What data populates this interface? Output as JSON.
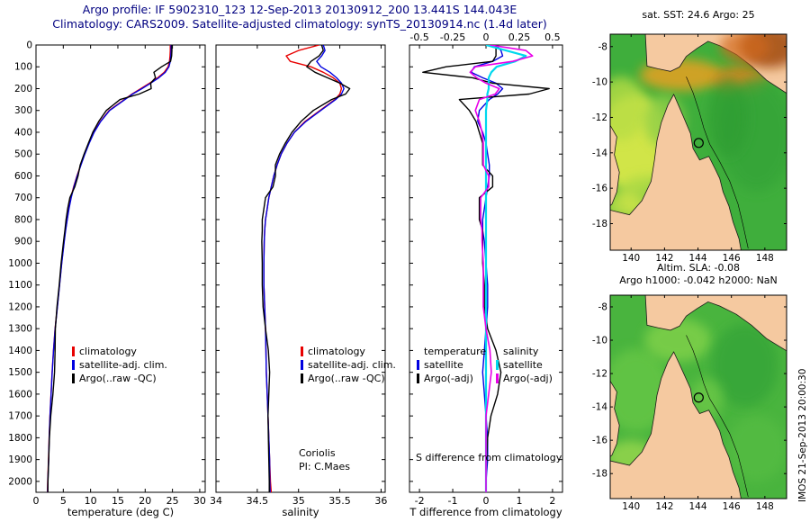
{
  "figure": {
    "title_line1": "Argo profile: IF 5902310_123 12-Sep-2013 20130912_200 13.441S 144.043E",
    "title_line2": "Climatology: CARS2009. Satellite-adjusted climatology: synTS_20130914.nc (1.4d later)",
    "title_color": "#000080",
    "watermark": "IMOS 21-Sep-2013 20:00:30"
  },
  "annotations": {
    "coriolis_line1": "Coriolis",
    "coriolis_line2": "PI: C.Maes",
    "s_diff_label": "S difference from climatology"
  },
  "legends": [
    {
      "id": "temp",
      "items": [
        {
          "label": "climatology",
          "color": "#e80000"
        },
        {
          "label": "satellite-adj. clim.",
          "color": "#0000e0"
        },
        {
          "label": "Argo(..raw -QC)",
          "color": "#000000"
        }
      ]
    },
    {
      "id": "sal",
      "items": [
        {
          "label": "climatology",
          "color": "#e80000"
        },
        {
          "label": "satellite-adj. clim.",
          "color": "#0000e0"
        },
        {
          "label": "Argo(..raw -QC)",
          "color": "#000000"
        }
      ]
    },
    {
      "id": "diff-temp",
      "header": "temperature",
      "items": [
        {
          "label": "satellite",
          "color": "#0000e0"
        },
        {
          "label": "Argo(-adj)",
          "color": "#000000"
        }
      ]
    },
    {
      "id": "diff-sal",
      "header": "salinity",
      "items": [
        {
          "label": "satellite",
          "color": "#00d8ee"
        },
        {
          "label": "Argo(-adj)",
          "color": "#e800e8"
        }
      ]
    }
  ],
  "chart_data": [
    {
      "id": "temperature-profile",
      "type": "line",
      "xlabel": "temperature (deg C)",
      "xlim": [
        0,
        31
      ],
      "ylim": [
        0,
        2050
      ],
      "xticks": [
        0,
        5,
        10,
        15,
        20,
        25,
        30
      ],
      "yticks": [
        0,
        100,
        200,
        300,
        400,
        500,
        600,
        700,
        800,
        900,
        1000,
        1100,
        1200,
        1300,
        1400,
        1500,
        1600,
        1700,
        1800,
        1900,
        2000
      ],
      "ytick_labels": true,
      "y": [
        0,
        25,
        50,
        75,
        100,
        125,
        150,
        175,
        200,
        225,
        250,
        300,
        350,
        400,
        450,
        500,
        550,
        600,
        650,
        700,
        750,
        800,
        850,
        900,
        1000,
        1100,
        1200,
        1300,
        1400,
        1500,
        1600,
        1700,
        1800,
        1900,
        2000,
        2050
      ],
      "series": [
        {
          "name": "climatology",
          "color": "#e80000",
          "lw": 1.4,
          "x": [
            24.6,
            24.6,
            24.55,
            24.45,
            24.2,
            23.5,
            22.3,
            20.8,
            19.2,
            17.6,
            16.2,
            13.4,
            11.8,
            10.6,
            9.7,
            8.9,
            8.2,
            7.5,
            6.9,
            6.4,
            6.0,
            5.7,
            5.4,
            5.15,
            4.7,
            4.3,
            3.9,
            3.5,
            3.2,
            2.95,
            2.75,
            2.55,
            2.4,
            2.3,
            2.15,
            2.1
          ]
        },
        {
          "name": "satellite-adj-clim",
          "color": "#0000e0",
          "lw": 1.4,
          "x": [
            24.75,
            24.75,
            24.7,
            24.6,
            24.35,
            23.7,
            22.5,
            21.0,
            19.4,
            17.7,
            16.3,
            13.5,
            11.85,
            10.65,
            9.75,
            8.95,
            8.25,
            7.55,
            6.95,
            6.45,
            6.05,
            5.72,
            5.42,
            5.17,
            4.72,
            4.32,
            3.92,
            3.52,
            3.22,
            2.97,
            2.77,
            2.57,
            2.42,
            2.32,
            2.17,
            2.13
          ]
        },
        {
          "name": "argo-raw",
          "color": "#000000",
          "lw": 1.4,
          "x": [
            24.9,
            24.9,
            24.85,
            24.65,
            23.0,
            21.6,
            21.9,
            21.0,
            21.1,
            18.9,
            15.4,
            12.9,
            11.5,
            10.4,
            9.6,
            8.8,
            8.1,
            7.7,
            7.1,
            6.2,
            5.8,
            5.5,
            5.3,
            5.05,
            4.6,
            4.25,
            3.85,
            3.55,
            3.5,
            3.4,
            3.1,
            2.7,
            2.45,
            2.32,
            2.2,
            2.18
          ]
        }
      ]
    },
    {
      "id": "salinity-profile",
      "type": "line",
      "xlabel": "salinity",
      "xlim": [
        34,
        36.05
      ],
      "ylim": [
        0,
        2050
      ],
      "xticks": [
        34,
        34.5,
        35,
        35.5,
        36
      ],
      "yticks": [
        0,
        100,
        200,
        300,
        400,
        500,
        600,
        700,
        800,
        900,
        1000,
        1100,
        1200,
        1300,
        1400,
        1500,
        1600,
        1700,
        1800,
        1900,
        2000
      ],
      "ytick_labels": false,
      "y": [
        0,
        25,
        50,
        75,
        100,
        125,
        150,
        175,
        200,
        225,
        250,
        300,
        350,
        400,
        450,
        500,
        550,
        600,
        650,
        700,
        750,
        800,
        850,
        900,
        1000,
        1100,
        1200,
        1300,
        1400,
        1500,
        1600,
        1700,
        1800,
        1900,
        2000,
        2050
      ],
      "series": [
        {
          "name": "climatology",
          "color": "#e80000",
          "lw": 1.4,
          "x": [
            35.25,
            35.0,
            34.85,
            34.9,
            35.15,
            35.3,
            35.42,
            35.5,
            35.52,
            35.5,
            35.44,
            35.26,
            35.08,
            34.95,
            34.86,
            34.79,
            34.74,
            34.7,
            34.67,
            34.64,
            34.62,
            34.6,
            34.59,
            34.585,
            34.58,
            34.58,
            34.59,
            34.6,
            34.605,
            34.61,
            34.62,
            34.63,
            34.64,
            34.65,
            34.66,
            34.67
          ]
        },
        {
          "name": "satellite-adj-clim",
          "color": "#0000e0",
          "lw": 1.4,
          "x": [
            35.3,
            35.32,
            35.28,
            35.22,
            35.27,
            35.38,
            35.46,
            35.52,
            35.55,
            35.52,
            35.45,
            35.27,
            35.09,
            34.95,
            34.86,
            34.79,
            34.74,
            34.7,
            34.67,
            34.64,
            34.62,
            34.6,
            34.59,
            34.585,
            34.58,
            34.58,
            34.59,
            34.6,
            34.605,
            34.61,
            34.62,
            34.63,
            34.64,
            34.65,
            34.652,
            34.655
          ]
        },
        {
          "name": "argo-raw",
          "color": "#000000",
          "lw": 1.4,
          "x": [
            35.28,
            35.3,
            35.25,
            35.15,
            35.1,
            35.2,
            35.35,
            35.5,
            35.62,
            35.57,
            35.4,
            35.18,
            35.03,
            34.92,
            34.84,
            34.77,
            34.72,
            34.72,
            34.69,
            34.6,
            34.58,
            34.56,
            34.56,
            34.555,
            34.56,
            34.56,
            34.57,
            34.6,
            34.635,
            34.65,
            34.64,
            34.63,
            34.635,
            34.64,
            34.645,
            34.645
          ]
        }
      ]
    },
    {
      "id": "difference-profile",
      "type": "line",
      "xlabel": "T difference from climatology",
      "xlabel_top": "S difference from climatology",
      "xlim": [
        -2.3,
        2.3
      ],
      "xticks": [
        -2,
        -1,
        0,
        1,
        2
      ],
      "xlim_top": [
        -0.575,
        0.575
      ],
      "xticks_top": [
        -0.5,
        -0.25,
        0,
        0.25,
        0.5
      ],
      "ylim": [
        0,
        2050
      ],
      "yticks": [
        0,
        100,
        200,
        300,
        400,
        500,
        600,
        700,
        800,
        900,
        1000,
        1100,
        1200,
        1300,
        1400,
        1500,
        1600,
        1700,
        1800,
        1900,
        2000
      ],
      "ytick_labels": false,
      "y": [
        0,
        25,
        50,
        75,
        100,
        125,
        150,
        175,
        200,
        225,
        250,
        300,
        350,
        400,
        450,
        500,
        550,
        600,
        650,
        700,
        750,
        800,
        850,
        900,
        1000,
        1100,
        1200,
        1300,
        1400,
        1500,
        1600,
        1700,
        1800,
        1900,
        2000,
        2050
      ],
      "series": [
        {
          "name": "t-diff-satellite",
          "color": "#0000e0",
          "lw": 1.4,
          "axis": "bottom",
          "x": [
            0.3,
            0.45,
            0.5,
            0.2,
            -0.35,
            -0.45,
            -0.1,
            0.3,
            0.5,
            0.35,
            0.1,
            -0.2,
            -0.25,
            -0.1,
            0.0,
            0.05,
            0.1,
            0.1,
            0.05,
            0.0,
            -0.05,
            -0.1,
            -0.1,
            -0.05,
            0.0,
            0.05,
            0.05,
            0.0,
            -0.05,
            -0.1,
            -0.05,
            0.0,
            0.05,
            0.05,
            0.0,
            0.0
          ]
        },
        {
          "name": "t-diff-argo",
          "color": "#000000",
          "lw": 1.4,
          "axis": "bottom",
          "x": [
            0.3,
            0.3,
            0.3,
            0.2,
            -1.2,
            -1.9,
            -0.4,
            0.2,
            1.9,
            1.3,
            -0.8,
            -0.5,
            -0.3,
            -0.2,
            -0.1,
            -0.1,
            -0.1,
            0.2,
            0.2,
            -0.2,
            -0.2,
            -0.2,
            -0.1,
            -0.1,
            -0.1,
            -0.05,
            -0.05,
            0.05,
            0.3,
            0.45,
            0.35,
            0.15,
            0.05,
            0.02,
            0.0,
            0.0
          ]
        },
        {
          "name": "s-diff-satellite",
          "color": "#00d8ee",
          "lw": 2.2,
          "axis": "top",
          "x": [
            0.0,
            0.15,
            0.3,
            0.22,
            0.08,
            0.04,
            0.02,
            0.02,
            0.02,
            0.01,
            0.01,
            0,
            0,
            0,
            0,
            0,
            0,
            0,
            0,
            0,
            0,
            0,
            0,
            0,
            0,
            0,
            0,
            0,
            0,
            0,
            0,
            0,
            0,
            0,
            0,
            0
          ]
        },
        {
          "name": "s-diff-argo",
          "color": "#e800e8",
          "lw": 1.6,
          "axis": "top",
          "x": [
            0.03,
            0.3,
            0.35,
            0.2,
            -0.08,
            -0.12,
            -0.07,
            0.0,
            0.1,
            0.07,
            -0.05,
            -0.08,
            -0.05,
            -0.03,
            -0.02,
            -0.02,
            -0.02,
            0.02,
            0.02,
            -0.04,
            -0.04,
            -0.04,
            -0.03,
            -0.03,
            -0.02,
            -0.02,
            -0.02,
            0.0,
            0.03,
            0.04,
            0.02,
            0.0,
            0.0,
            0.0,
            0.0,
            0.0
          ]
        }
      ]
    }
  ],
  "maps": [
    {
      "id": "sst-map",
      "title": "sat. SST: 24.6 Argo: 25",
      "xlim": [
        138.75,
        149.3
      ],
      "ylim": [
        -7.3,
        -19.5
      ],
      "xticks": [
        140,
        142,
        144,
        146,
        148
      ],
      "yticks": [
        -8,
        -10,
        -12,
        -14,
        -16,
        -18
      ],
      "ocean": "#3fae3c",
      "land": [
        "australia",
        "png",
        "nt_coast"
      ],
      "marker": {
        "lon": 144.043,
        "lat": -13.441
      },
      "blobs": [
        {
          "lon": 140.2,
          "lat": -13.5,
          "rx": 2.2,
          "ry": 2.8,
          "color": "#d9e84a",
          "op": 0.95
        },
        {
          "lon": 139.4,
          "lat": -11.5,
          "rx": 1.5,
          "ry": 1.8,
          "color": "#b8dd45",
          "op": 0.8
        },
        {
          "lon": 141.0,
          "lat": -16.5,
          "rx": 1.8,
          "ry": 1.2,
          "color": "#a8d845",
          "op": 0.8
        },
        {
          "lon": 139.6,
          "lat": -17.0,
          "rx": 1.2,
          "ry": 0.8,
          "color": "#d9e84a",
          "op": 0.7
        },
        {
          "lon": 143.0,
          "lat": -9.6,
          "rx": 2.5,
          "ry": 0.9,
          "color": "#e8a020",
          "op": 0.85
        },
        {
          "lon": 146.5,
          "lat": -9.9,
          "rx": 1.6,
          "ry": 0.8,
          "color": "#e8801a",
          "op": 0.8
        },
        {
          "lon": 147.5,
          "lat": -13.0,
          "rx": 2.2,
          "ry": 3.2,
          "color": "#35a437",
          "op": 0.8
        },
        {
          "lon": 145.8,
          "lat": -12.0,
          "rx": 1.2,
          "ry": 2.2,
          "color": "#2f9d33",
          "op": 0.7
        },
        {
          "lon": 142.0,
          "lat": -12.2,
          "rx": 1.2,
          "ry": 1.5,
          "color": "#8fcf46",
          "op": 0.8
        }
      ],
      "blobs_over": [
        {
          "lon": 148.3,
          "lat": -8.0,
          "rx": 1.8,
          "ry": 1.2,
          "color": "#a04a10",
          "op": 0.85
        },
        {
          "lon": 146.8,
          "lat": -8.0,
          "rx": 1.5,
          "ry": 0.9,
          "color": "#d2691e",
          "op": 0.7
        }
      ]
    },
    {
      "id": "sla-map",
      "title1": "Altim. SLA: -0.08",
      "title2": "Argo h1000: -0.042 h2000: NaN",
      "xlim": [
        138.75,
        149.3
      ],
      "ylim": [
        -7.3,
        -19.5
      ],
      "xticks": [
        140,
        142,
        144,
        146,
        148
      ],
      "yticks": [
        -8,
        -10,
        -12,
        -14,
        -16,
        -18
      ],
      "ocean": "#49b43e",
      "land": [
        "australia",
        "png",
        "nt_coast"
      ],
      "marker": {
        "lon": 144.043,
        "lat": -13.441
      },
      "blobs": [
        {
          "lon": 140.3,
          "lat": -13.0,
          "rx": 2.0,
          "ry": 2.5,
          "color": "#63c544",
          "op": 0.9
        },
        {
          "lon": 142.8,
          "lat": -10.0,
          "rx": 2.0,
          "ry": 1.3,
          "color": "#7fd04a",
          "op": 0.85
        },
        {
          "lon": 146.8,
          "lat": -11.5,
          "rx": 2.0,
          "ry": 2.5,
          "color": "#35a437",
          "op": 0.8
        },
        {
          "lon": 140.0,
          "lat": -17.0,
          "rx": 1.5,
          "ry": 1.0,
          "color": "#9ad84e",
          "op": 0.8
        },
        {
          "lon": 147.5,
          "lat": -16.5,
          "rx": 1.8,
          "ry": 2.0,
          "color": "#54bc42",
          "op": 0.8
        },
        {
          "lon": 144.5,
          "lat": -13.5,
          "rx": 1.0,
          "ry": 1.2,
          "color": "#6cc847",
          "op": 0.8
        }
      ],
      "blobs_over": []
    }
  ],
  "map_geo": {
    "land_color": "#f5c9a0",
    "australia": [
      [
        142.55,
        -10.7
      ],
      [
        142.85,
        -11.35
      ],
      [
        143.15,
        -12.0
      ],
      [
        143.55,
        -12.9
      ],
      [
        143.7,
        -13.75
      ],
      [
        144.1,
        -14.4
      ],
      [
        144.65,
        -14.2
      ],
      [
        145.05,
        -14.95
      ],
      [
        145.3,
        -15.45
      ],
      [
        145.5,
        -16.2
      ],
      [
        145.85,
        -17.0
      ],
      [
        146.1,
        -17.9
      ],
      [
        146.45,
        -18.85
      ],
      [
        146.6,
        -19.6
      ],
      [
        138.6,
        -19.6
      ],
      [
        138.6,
        -17.2
      ],
      [
        139.9,
        -17.5
      ],
      [
        140.65,
        -16.7
      ],
      [
        141.2,
        -15.6
      ],
      [
        141.4,
        -14.4
      ],
      [
        141.55,
        -13.3
      ],
      [
        141.8,
        -12.3
      ],
      [
        142.2,
        -11.3
      ]
    ],
    "png": [
      [
        140.85,
        -7.2
      ],
      [
        140.95,
        -9.1
      ],
      [
        141.6,
        -9.25
      ],
      [
        142.35,
        -9.4
      ],
      [
        142.9,
        -9.15
      ],
      [
        143.3,
        -8.55
      ],
      [
        143.95,
        -8.1
      ],
      [
        144.6,
        -7.7
      ],
      [
        145.3,
        -7.95
      ],
      [
        146.3,
        -8.45
      ],
      [
        147.2,
        -9.1
      ],
      [
        148.1,
        -9.9
      ],
      [
        149.4,
        -10.7
      ],
      [
        149.4,
        -7.2
      ]
    ],
    "nt_coast": [
      [
        138.6,
        -12.2
      ],
      [
        139.15,
        -13.1
      ],
      [
        139.0,
        -14.1
      ],
      [
        139.3,
        -15.1
      ],
      [
        139.15,
        -16.2
      ],
      [
        138.85,
        -16.9
      ],
      [
        138.6,
        -17.1
      ]
    ],
    "isobath": [
      [
        143.3,
        -9.7
      ],
      [
        143.7,
        -10.6
      ],
      [
        144.05,
        -11.6
      ],
      [
        144.35,
        -12.6
      ],
      [
        144.7,
        -13.5
      ],
      [
        145.3,
        -14.5
      ],
      [
        145.9,
        -15.6
      ],
      [
        146.4,
        -16.9
      ],
      [
        146.7,
        -18.1
      ],
      [
        147.0,
        -19.4
      ]
    ]
  }
}
